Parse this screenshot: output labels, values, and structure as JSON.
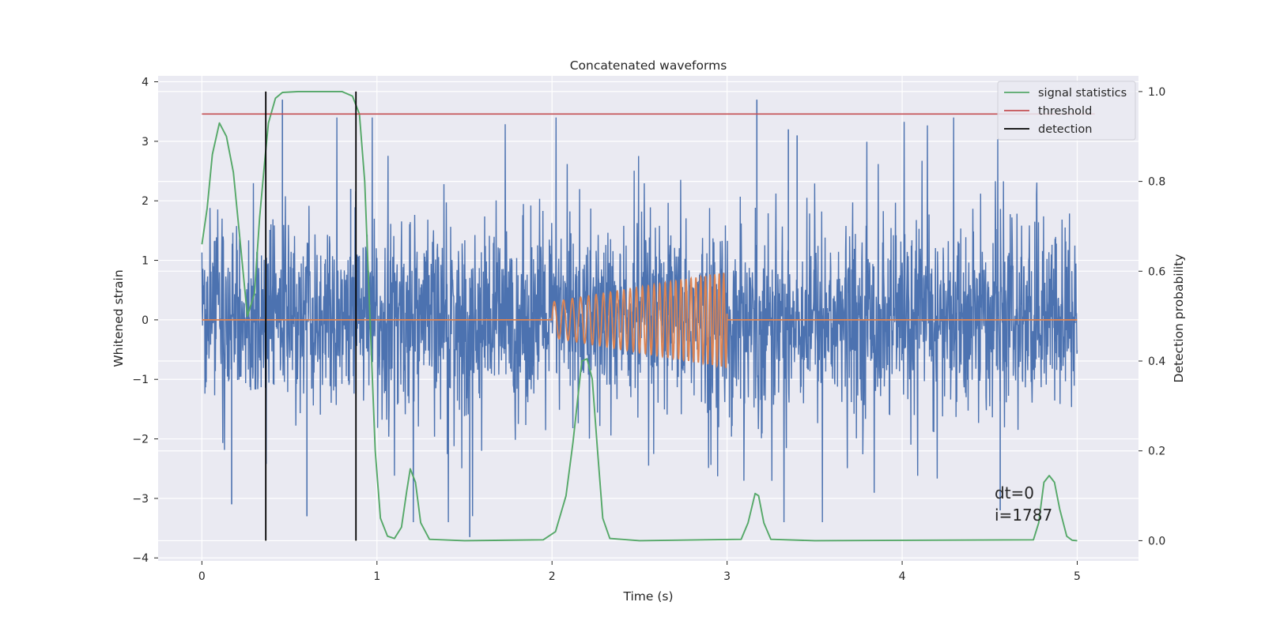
{
  "chart_data": {
    "type": "line",
    "title": "Concatenated waveforms",
    "xlabel": "Time (s)",
    "ylabel": "Whitened strain",
    "y2label": "Detection probability",
    "xlim": [
      -0.25,
      5.35
    ],
    "ylim": [
      -4.05,
      4.1
    ],
    "y2lim": [
      -0.045,
      1.035
    ],
    "x_ticks": [
      0,
      1,
      2,
      3,
      4,
      5
    ],
    "y_ticks": [
      -4,
      -3,
      -2,
      -1,
      0,
      1,
      2,
      3,
      4
    ],
    "y2_ticks": [
      0.0,
      0.2,
      0.4,
      0.6,
      0.8,
      1.0
    ],
    "grid": true,
    "legend_position": "top-right",
    "colors": {
      "noise": "#4c72b0",
      "injection": "#dd8452",
      "signal_statistics": "#55a868",
      "threshold": "#c44e52",
      "detection": "#000000",
      "background": "#eaeaf2",
      "grid": "#ffffff"
    },
    "series": [
      {
        "role": "noise",
        "axis": "left",
        "x_range": [
          0,
          5
        ],
        "amplitude_std": 0.75,
        "outliers": [
          [
            0.46,
            3.7
          ],
          [
            0.85,
            2.2
          ],
          [
            1.53,
            -3.65
          ],
          [
            3.17,
            3.7
          ],
          [
            3.35,
            3.2
          ],
          [
            3.4,
            3.1
          ],
          [
            4.56,
            -3.2
          ],
          [
            0.6,
            -3.3
          ],
          [
            0.17,
            -3.1
          ]
        ]
      },
      {
        "role": "injection",
        "axis": "left",
        "x_range": [
          0,
          5
        ],
        "chirp_start": 2.0,
        "chirp_end": 3.0,
        "amplitude_start": 0.3,
        "amplitude_end": 0.8,
        "freq_start_hz": 18,
        "freq_end_hz": 40
      },
      {
        "name": "signal statistics",
        "axis": "right",
        "points": [
          [
            0.0,
            0.66
          ],
          [
            0.03,
            0.74
          ],
          [
            0.06,
            0.86
          ],
          [
            0.1,
            0.93
          ],
          [
            0.14,
            0.9
          ],
          [
            0.18,
            0.82
          ],
          [
            0.22,
            0.66
          ],
          [
            0.26,
            0.5
          ],
          [
            0.3,
            0.55
          ],
          [
            0.33,
            0.72
          ],
          [
            0.36,
            0.85
          ],
          [
            0.38,
            0.93
          ],
          [
            0.42,
            0.985
          ],
          [
            0.46,
            0.998
          ],
          [
            0.55,
            1.0
          ],
          [
            0.8,
            1.0
          ],
          [
            0.86,
            0.99
          ],
          [
            0.9,
            0.95
          ],
          [
            0.93,
            0.8
          ],
          [
            0.96,
            0.5
          ],
          [
            0.99,
            0.2
          ],
          [
            1.02,
            0.05
          ],
          [
            1.06,
            0.01
          ],
          [
            1.1,
            0.005
          ],
          [
            1.14,
            0.03
          ],
          [
            1.17,
            0.11
          ],
          [
            1.19,
            0.16
          ],
          [
            1.22,
            0.13
          ],
          [
            1.25,
            0.04
          ],
          [
            1.3,
            0.003
          ],
          [
            1.5,
            0.0
          ],
          [
            1.95,
            0.002
          ],
          [
            2.02,
            0.02
          ],
          [
            2.08,
            0.1
          ],
          [
            2.12,
            0.22
          ],
          [
            2.17,
            0.4
          ],
          [
            2.2,
            0.405
          ],
          [
            2.23,
            0.36
          ],
          [
            2.26,
            0.2
          ],
          [
            2.29,
            0.05
          ],
          [
            2.33,
            0.005
          ],
          [
            2.5,
            0.0
          ],
          [
            3.08,
            0.003
          ],
          [
            3.12,
            0.04
          ],
          [
            3.16,
            0.105
          ],
          [
            3.18,
            0.1
          ],
          [
            3.21,
            0.04
          ],
          [
            3.25,
            0.003
          ],
          [
            3.5,
            0.0
          ],
          [
            4.75,
            0.002
          ],
          [
            4.78,
            0.04
          ],
          [
            4.81,
            0.13
          ],
          [
            4.84,
            0.145
          ],
          [
            4.87,
            0.13
          ],
          [
            4.9,
            0.07
          ],
          [
            4.94,
            0.01
          ],
          [
            4.97,
            0.001
          ],
          [
            5.0,
            0.0
          ]
        ]
      },
      {
        "name": "threshold",
        "axis": "right",
        "x": [
          0,
          5.1
        ],
        "value": 0.95
      },
      {
        "name": "detection",
        "axis": "right",
        "x_values": [
          0.365,
          0.88
        ],
        "range": [
          0.0,
          1.0
        ]
      }
    ],
    "annotations": [
      "dt=0",
      "i=1787"
    ]
  }
}
